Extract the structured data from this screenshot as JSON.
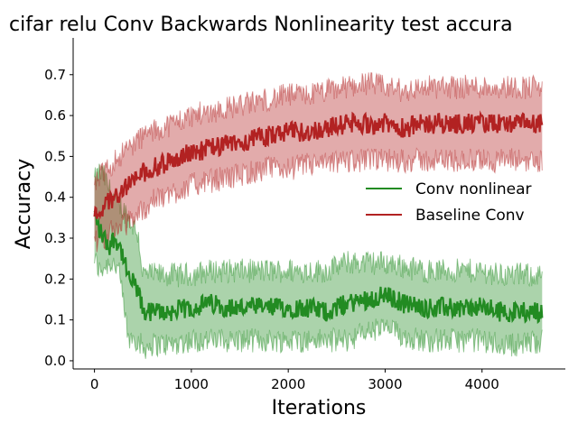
{
  "chart_data": {
    "type": "line",
    "title": "cifar relu Conv Backwards Nonlinearity test accura",
    "xlabel": "Iterations",
    "ylabel": "Accuracy",
    "xlim": [
      -220,
      4860
    ],
    "ylim": [
      -0.02,
      0.79
    ],
    "xticks": [
      0,
      1000,
      2000,
      3000,
      4000
    ],
    "xtick_labels": [
      "0",
      "1000",
      "2000",
      "3000",
      "4000"
    ],
    "yticks": [
      0.0,
      0.1,
      0.2,
      0.3,
      0.4,
      0.5,
      0.6,
      0.7
    ],
    "ytick_labels": [
      "0.0",
      "0.1",
      "0.2",
      "0.3",
      "0.4",
      "0.5",
      "0.6",
      "0.7"
    ],
    "grid": false,
    "legend_position": "center-right",
    "series": [
      {
        "name": "Conv nonlinear",
        "color": "#228b22",
        "x": [
          0,
          50,
          100,
          150,
          200,
          250,
          300,
          350,
          400,
          450,
          500,
          600,
          800,
          1000,
          1200,
          1400,
          1600,
          1800,
          2000,
          2200,
          2400,
          2600,
          2800,
          3000,
          3200,
          3400,
          3600,
          3800,
          4000,
          4200,
          4400,
          4620
        ],
        "mean": [
          0.36,
          0.32,
          0.3,
          0.28,
          0.3,
          0.29,
          0.25,
          0.2,
          0.19,
          0.17,
          0.12,
          0.12,
          0.12,
          0.13,
          0.14,
          0.13,
          0.13,
          0.13,
          0.13,
          0.13,
          0.12,
          0.14,
          0.15,
          0.16,
          0.14,
          0.13,
          0.13,
          0.13,
          0.13,
          0.12,
          0.12,
          0.12
        ],
        "lower": [
          0.25,
          0.22,
          0.23,
          0.24,
          0.24,
          0.22,
          0.14,
          0.05,
          0.06,
          0.05,
          0.03,
          0.04,
          0.04,
          0.05,
          0.05,
          0.05,
          0.05,
          0.05,
          0.05,
          0.05,
          0.05,
          0.05,
          0.07,
          0.08,
          0.06,
          0.05,
          0.05,
          0.05,
          0.05,
          0.04,
          0.04,
          0.05
        ],
        "upper": [
          0.44,
          0.46,
          0.45,
          0.42,
          0.4,
          0.38,
          0.37,
          0.35,
          0.33,
          0.31,
          0.21,
          0.21,
          0.21,
          0.21,
          0.22,
          0.22,
          0.22,
          0.22,
          0.22,
          0.22,
          0.22,
          0.24,
          0.24,
          0.24,
          0.23,
          0.22,
          0.22,
          0.22,
          0.22,
          0.21,
          0.21,
          0.21
        ]
      },
      {
        "name": "Baseline Conv",
        "color": "#b22222",
        "x": [
          0,
          50,
          100,
          150,
          200,
          250,
          300,
          350,
          400,
          450,
          500,
          600,
          800,
          1000,
          1200,
          1400,
          1600,
          1800,
          2000,
          2200,
          2400,
          2600,
          2800,
          3000,
          3200,
          3400,
          3600,
          3800,
          4000,
          4200,
          4400,
          4620
        ],
        "mean": [
          0.35,
          0.37,
          0.38,
          0.39,
          0.4,
          0.41,
          0.42,
          0.43,
          0.44,
          0.45,
          0.46,
          0.47,
          0.49,
          0.51,
          0.52,
          0.53,
          0.54,
          0.55,
          0.56,
          0.56,
          0.57,
          0.58,
          0.58,
          0.58,
          0.57,
          0.58,
          0.58,
          0.58,
          0.58,
          0.58,
          0.58,
          0.58
        ],
        "lower": [
          0.29,
          0.29,
          0.3,
          0.31,
          0.32,
          0.33,
          0.33,
          0.34,
          0.35,
          0.36,
          0.37,
          0.39,
          0.41,
          0.43,
          0.44,
          0.45,
          0.46,
          0.47,
          0.47,
          0.48,
          0.48,
          0.49,
          0.49,
          0.49,
          0.49,
          0.49,
          0.49,
          0.49,
          0.49,
          0.49,
          0.49,
          0.49
        ],
        "upper": [
          0.42,
          0.45,
          0.46,
          0.47,
          0.49,
          0.5,
          0.51,
          0.52,
          0.53,
          0.54,
          0.55,
          0.56,
          0.58,
          0.6,
          0.61,
          0.62,
          0.63,
          0.64,
          0.65,
          0.65,
          0.66,
          0.67,
          0.68,
          0.67,
          0.66,
          0.67,
          0.67,
          0.67,
          0.67,
          0.67,
          0.67,
          0.67
        ]
      }
    ]
  }
}
